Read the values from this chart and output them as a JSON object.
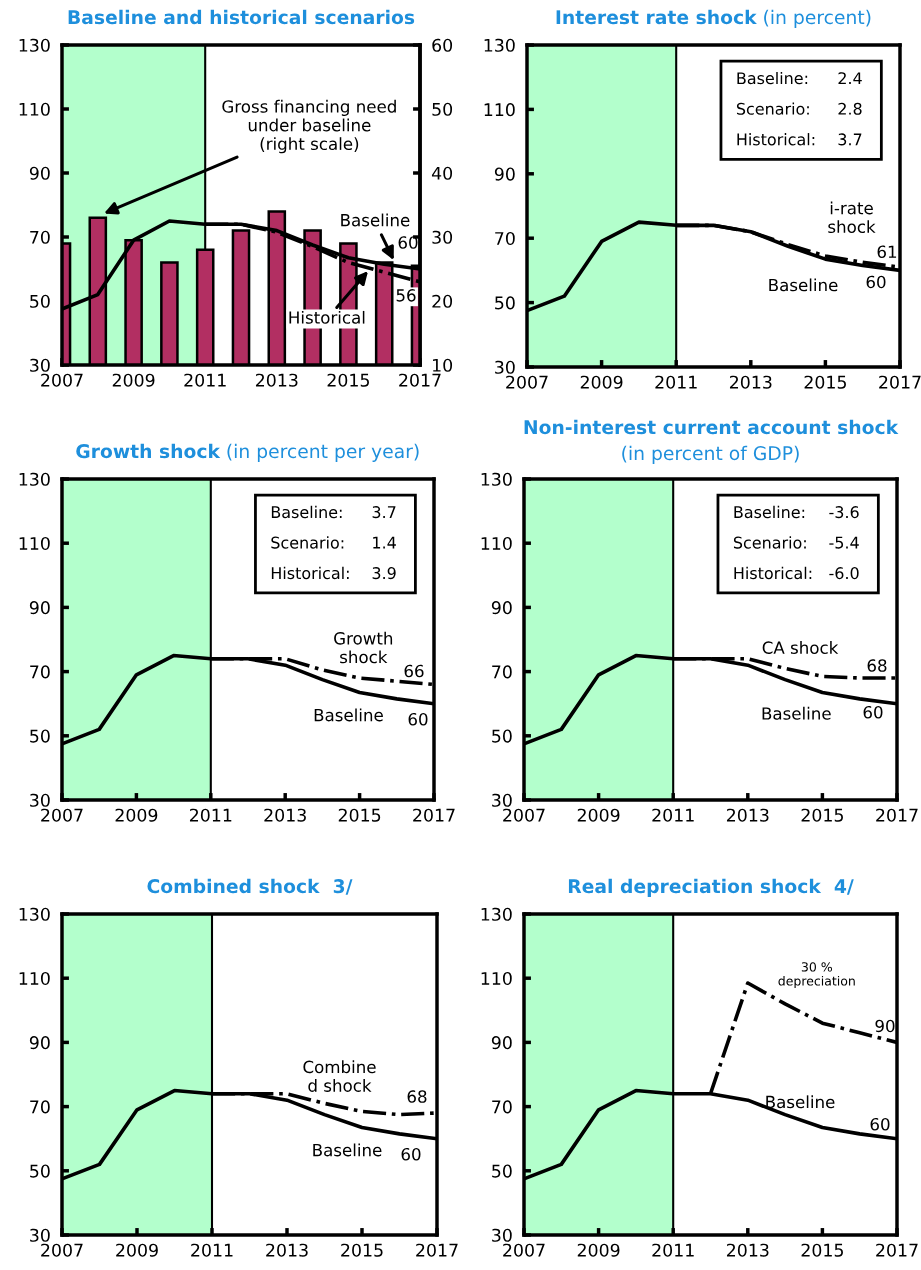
{
  "chart_data": [
    {
      "type": "line",
      "title": "Baseline and historical scenarios",
      "x": [
        2007,
        2008,
        2009,
        2010,
        2011,
        2012,
        2013,
        2014,
        2015,
        2016,
        2017
      ],
      "xlim": [
        2007,
        2017
      ],
      "xticks": [
        2007,
        2009,
        2011,
        2013,
        2015,
        2017
      ],
      "ylim": [
        30,
        130
      ],
      "yticks": [
        30,
        50,
        70,
        90,
        110,
        130
      ],
      "y2lim": [
        10,
        60
      ],
      "y2ticks": [
        10,
        20,
        30,
        40,
        50,
        60
      ],
      "bands": [
        {
          "axis": "x",
          "from": 2007,
          "to": 2011,
          "color": "#b3ffcc"
        }
      ],
      "series": [
        {
          "type": "bar",
          "axis": "y2",
          "color": "#b22f62",
          "values": [
            29,
            33,
            29.5,
            26,
            28,
            31,
            34,
            31,
            29,
            26,
            25.5
          ]
        },
        {
          "type": "line",
          "color": "#000000",
          "line_style": "solid",
          "values": [
            47.5,
            52,
            69,
            75,
            74,
            74,
            72,
            67.5,
            63.5,
            61.5,
            60
          ]
        },
        {
          "type": "line",
          "color": "#000000",
          "line_style": "dashdot",
          "x": [
            2011,
            2012,
            2013,
            2014,
            2015,
            2016,
            2017
          ],
          "values": [
            74,
            74,
            71.5,
            67,
            62,
            59,
            56
          ]
        }
      ],
      "annotations": [
        {
          "text": "Gross financing need\nunder baseline\n(right scale)",
          "x": 2008.1,
          "y": 77
        },
        {
          "text": "Baseline",
          "x": 2016.3,
          "y": 62
        },
        {
          "text": "Historical",
          "x": 2015.6,
          "y": 60
        },
        {
          "text": "60",
          "x": 2017,
          "y": 60
        },
        {
          "text": "56",
          "x": 2017,
          "y": 56
        }
      ]
    },
    {
      "type": "line",
      "title": "Interest rate shock",
      "subtitle": "(in percent)",
      "x": [
        2007,
        2008,
        2009,
        2010,
        2011,
        2012,
        2013,
        2014,
        2015,
        2016,
        2017
      ],
      "xlim": [
        2007,
        2017
      ],
      "xticks": [
        2007,
        2009,
        2011,
        2013,
        2015,
        2017
      ],
      "ylim": [
        30,
        130
      ],
      "yticks": [
        30,
        50,
        70,
        90,
        110,
        130
      ],
      "bands": [
        {
          "axis": "x",
          "from": 2007,
          "to": 2011,
          "color": "#b3ffcc"
        }
      ],
      "series": [
        {
          "type": "line",
          "color": "#000000",
          "line_style": "solid",
          "values": [
            47.5,
            52,
            69,
            75,
            74,
            74,
            72,
            67.5,
            63.5,
            61.5,
            60
          ]
        },
        {
          "type": "line",
          "color": "#000000",
          "line_style": "dashdot",
          "x": [
            2011,
            2012,
            2013,
            2014,
            2015,
            2016,
            2017
          ],
          "values": [
            74,
            74,
            72,
            68,
            64.5,
            62.5,
            61
          ]
        }
      ],
      "annotations": [
        "Baseline:",
        "2.4",
        "Scenario:",
        "2.8",
        "Historical:",
        "3.7",
        "i-rate\nshock",
        {
          "text": "61",
          "x": 2017,
          "y": 61
        },
        "Baseline",
        {
          "text": "60",
          "x": 2017,
          "y": 60
        }
      ]
    },
    {
      "type": "line",
      "title": "Growth shock",
      "subtitle": "(in percent per year)",
      "x": [
        2007,
        2008,
        2009,
        2010,
        2011,
        2012,
        2013,
        2014,
        2015,
        2016,
        2017
      ],
      "xlim": [
        2007,
        2017
      ],
      "xticks": [
        2007,
        2009,
        2011,
        2013,
        2015,
        2017
      ],
      "ylim": [
        30,
        130
      ],
      "yticks": [
        30,
        50,
        70,
        90,
        110,
        130
      ],
      "bands": [
        {
          "axis": "x",
          "from": 2007,
          "to": 2011,
          "color": "#b3ffcc"
        }
      ],
      "series": [
        {
          "type": "line",
          "color": "#000000",
          "line_style": "solid",
          "values": [
            47.5,
            52,
            69,
            75,
            74,
            74,
            72,
            67.5,
            63.5,
            61.5,
            60
          ]
        },
        {
          "type": "line",
          "color": "#000000",
          "line_style": "dashdot",
          "x": [
            2011,
            2012,
            2013,
            2014,
            2015,
            2016,
            2017
          ],
          "values": [
            74,
            74,
            74,
            70.5,
            68,
            67,
            66
          ]
        }
      ],
      "annotations": [
        "Baseline:",
        "3.7",
        "Scenario:",
        "1.4",
        "Historical:",
        "3.9",
        "Growth\nshock",
        {
          "text": "66",
          "x": 2017,
          "y": 66
        },
        "Baseline",
        {
          "text": "60",
          "x": 2017,
          "y": 60
        }
      ]
    },
    {
      "type": "line",
      "title": "Non-interest current account shock",
      "subtitle": "(in percent of GDP)",
      "x": [
        2007,
        2008,
        2009,
        2010,
        2011,
        2012,
        2013,
        2014,
        2015,
        2016,
        2017
      ],
      "xlim": [
        2007,
        2017
      ],
      "xticks": [
        2007,
        2009,
        2011,
        2013,
        2015,
        2017
      ],
      "ylim": [
        30,
        130
      ],
      "yticks": [
        30,
        50,
        70,
        90,
        110,
        130
      ],
      "bands": [
        {
          "axis": "x",
          "from": 2007,
          "to": 2011,
          "color": "#b3ffcc"
        }
      ],
      "series": [
        {
          "type": "line",
          "color": "#000000",
          "line_style": "solid",
          "values": [
            47.5,
            52,
            69,
            75,
            74,
            74,
            72,
            67.5,
            63.5,
            61.5,
            60
          ]
        },
        {
          "type": "line",
          "color": "#000000",
          "line_style": "dashdot",
          "x": [
            2011,
            2012,
            2013,
            2014,
            2015,
            2016,
            2017
          ],
          "values": [
            74,
            74,
            74,
            71,
            68.5,
            68,
            68
          ]
        }
      ],
      "annotations": [
        "Baseline:",
        "-3.6",
        "Scenario:",
        "-5.4",
        "Historical:",
        "-6.0",
        "CA shock",
        {
          "text": "68",
          "x": 2017,
          "y": 68
        },
        "Baseline",
        {
          "text": "60",
          "x": 2017,
          "y": 60
        }
      ]
    },
    {
      "type": "line",
      "title": "Combined shock  3/",
      "x": [
        2007,
        2008,
        2009,
        2010,
        2011,
        2012,
        2013,
        2014,
        2015,
        2016,
        2017
      ],
      "xlim": [
        2007,
        2017
      ],
      "xticks": [
        2007,
        2009,
        2011,
        2013,
        2015,
        2017
      ],
      "ylim": [
        30,
        130
      ],
      "yticks": [
        30,
        50,
        70,
        90,
        110,
        130
      ],
      "bands": [
        {
          "axis": "x",
          "from": 2007,
          "to": 2011,
          "color": "#b3ffcc"
        }
      ],
      "series": [
        {
          "type": "line",
          "color": "#000000",
          "line_style": "solid",
          "values": [
            47.5,
            52,
            69,
            75,
            74,
            74,
            72,
            67.5,
            63.5,
            61.5,
            60
          ]
        },
        {
          "type": "line",
          "color": "#000000",
          "line_style": "dashdot",
          "x": [
            2011,
            2012,
            2013,
            2014,
            2015,
            2016,
            2017
          ],
          "values": [
            74,
            74,
            74,
            71,
            68.5,
            67.5,
            68
          ]
        }
      ],
      "annotations": [
        "Combine\nd shock",
        {
          "text": "68",
          "x": 2017,
          "y": 68
        },
        "Baseline",
        {
          "text": "60",
          "x": 2017,
          "y": 60
        }
      ]
    },
    {
      "type": "line",
      "title": "Real depreciation shock  4/",
      "x": [
        2007,
        2008,
        2009,
        2010,
        2011,
        2012,
        2013,
        2014,
        2015,
        2016,
        2017
      ],
      "xlim": [
        2007,
        2017
      ],
      "xticks": [
        2007,
        2009,
        2011,
        2013,
        2015,
        2017
      ],
      "ylim": [
        30,
        130
      ],
      "yticks": [
        30,
        50,
        70,
        90,
        110,
        130
      ],
      "bands": [
        {
          "axis": "x",
          "from": 2007,
          "to": 2011,
          "color": "#b3ffcc"
        }
      ],
      "series": [
        {
          "type": "line",
          "color": "#000000",
          "line_style": "solid",
          "values": [
            47.5,
            52,
            69,
            75,
            74,
            74,
            72,
            67.5,
            63.5,
            61.5,
            60
          ]
        },
        {
          "type": "line",
          "color": "#000000",
          "line_style": "dashdot",
          "x": [
            2012,
            2013,
            2014,
            2015,
            2016,
            2017
          ],
          "values": [
            74,
            108.5,
            102,
            96,
            93,
            90
          ]
        }
      ],
      "annotations": [
        "30 %\ndepreciation",
        {
          "text": "90",
          "x": 2017,
          "y": 90
        },
        "Baseline",
        {
          "text": "60",
          "x": 2017,
          "y": 60
        }
      ]
    }
  ]
}
